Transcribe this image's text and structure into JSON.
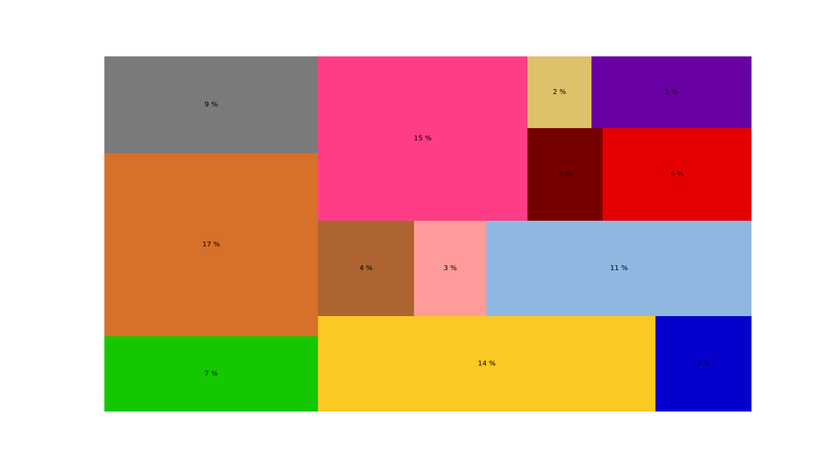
{
  "chart_data": {
    "type": "treemap",
    "title": "",
    "unit_suffix": " %",
    "tiles": [
      {
        "value": 9,
        "label": "9 %",
        "color": "#7a7a7a"
      },
      {
        "value": 17,
        "label": "17 %",
        "color": "#d77028"
      },
      {
        "value": 7,
        "label": "7 %",
        "color": "#14c800"
      },
      {
        "value": 15,
        "label": "15 %",
        "color": "#ff3d87"
      },
      {
        "value": 2,
        "label": "2 %",
        "color": "#dfc06b"
      },
      {
        "value": 5,
        "label": "5 %",
        "color": "#6a00a3"
      },
      {
        "value": 3,
        "label": "3 %",
        "color": "#760000"
      },
      {
        "value": 6,
        "label": "6 %",
        "color": "#e40000"
      },
      {
        "value": 4,
        "label": "4 %",
        "color": "#ad6430"
      },
      {
        "value": 3,
        "label": "3 %",
        "color": "#ff9b99"
      },
      {
        "value": 11,
        "label": "11 %",
        "color": "#8fb8e1"
      },
      {
        "value": 14,
        "label": "14 %",
        "color": "#fcc822"
      },
      {
        "value": 4,
        "label": "4 %",
        "color": "#0600cd"
      }
    ]
  }
}
